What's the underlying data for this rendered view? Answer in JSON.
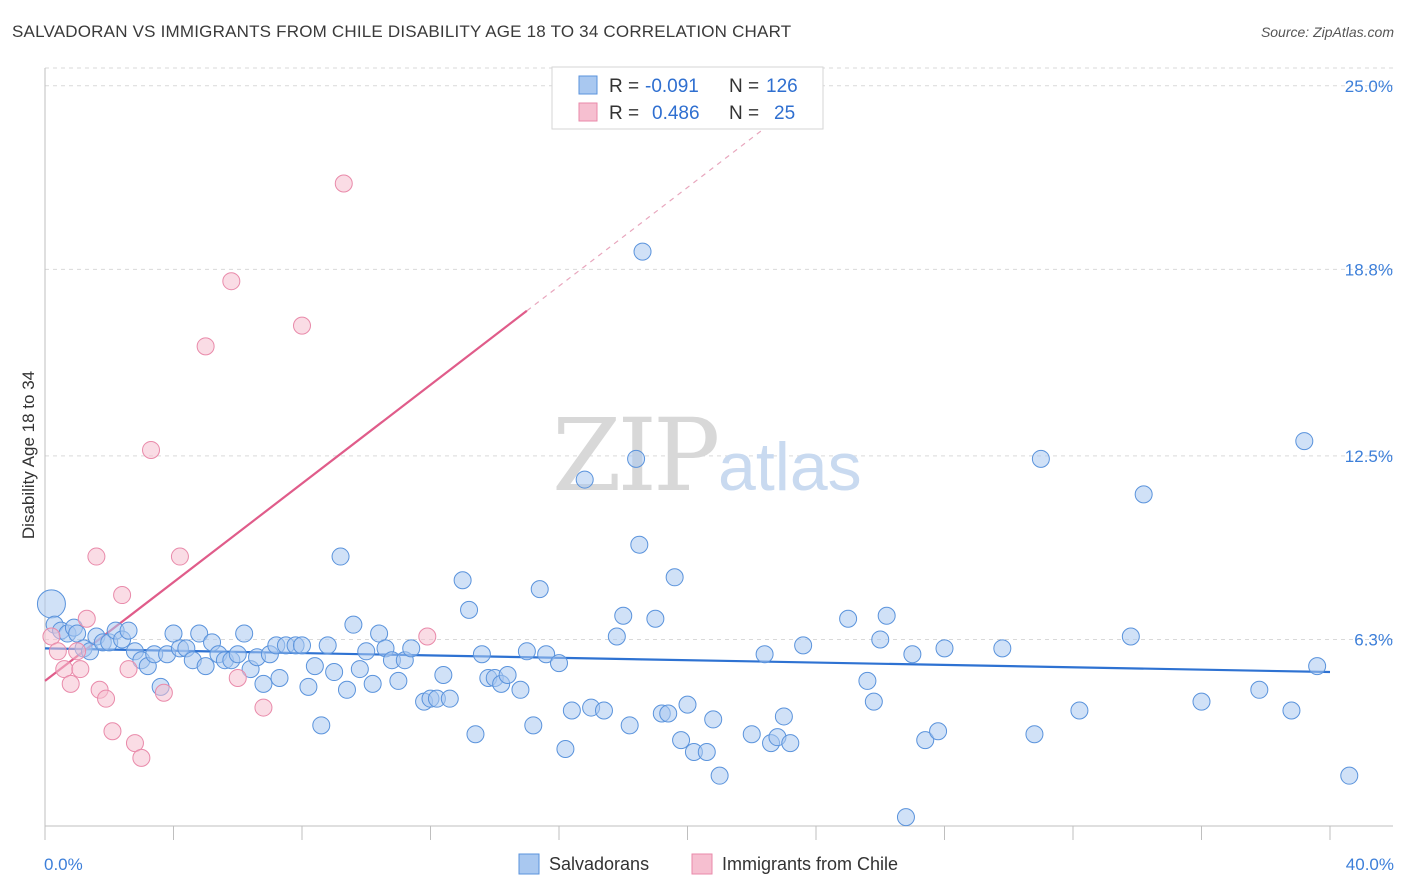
{
  "title": "SALVADORAN VS IMMIGRANTS FROM CHILE DISABILITY AGE 18 TO 34 CORRELATION CHART",
  "source": "Source: ZipAtlas.com",
  "watermark": {
    "zip": "ZIP",
    "atlas": "atlas"
  },
  "colors": {
    "blue_fill": "#a9c8f0",
    "blue_stroke": "#5a93dc",
    "blue_line": "#2e72d2",
    "pink_fill": "#f6bfd0",
    "pink_stroke": "#e98aaa",
    "pink_line": "#e05c8a",
    "tick_text": "#3d7fd9",
    "grid": "#d9d9d9"
  },
  "legend": {
    "rows": [
      {
        "r_label": "R =",
        "r_value": "-0.091",
        "n_label": "N =",
        "n_value": "126"
      },
      {
        "r_label": "R =",
        "r_value": "0.486",
        "n_label": "N =",
        "n_value": "25"
      }
    ]
  },
  "chart_data": {
    "type": "scatter",
    "title": "SALVADORAN VS IMMIGRANTS FROM CHILE DISABILITY AGE 18 TO 34 CORRELATION CHART",
    "xlabel": "",
    "ylabel": "Disability Age 18 to 34",
    "xlim": [
      0,
      40
    ],
    "ylim": [
      0,
      25.6
    ],
    "x_tick_labels": [
      "0.0%",
      "40.0%"
    ],
    "y_ticks": [
      6.3,
      12.5,
      18.8,
      25.0
    ],
    "y_tick_labels": [
      "6.3%",
      "12.5%",
      "18.8%",
      "25.0%"
    ],
    "grid": true,
    "legend_position": "bottom",
    "series": [
      {
        "name": "Salvadorans",
        "color": "#a9c8f0",
        "trend": {
          "x": [
            0,
            40
          ],
          "y": [
            6.0,
            5.2
          ]
        },
        "points": [
          [
            0.2,
            7.5
          ],
          [
            0.3,
            6.8
          ],
          [
            0.5,
            6.6
          ],
          [
            0.7,
            6.5
          ],
          [
            0.9,
            6.7
          ],
          [
            1.0,
            6.5
          ],
          [
            1.2,
            6.0
          ],
          [
            1.4,
            5.9
          ],
          [
            1.6,
            6.4
          ],
          [
            1.8,
            6.2
          ],
          [
            2.0,
            6.2
          ],
          [
            2.2,
            6.6
          ],
          [
            2.4,
            6.3
          ],
          [
            2.6,
            6.6
          ],
          [
            2.8,
            5.9
          ],
          [
            3.0,
            5.6
          ],
          [
            3.2,
            5.4
          ],
          [
            3.4,
            5.8
          ],
          [
            3.6,
            4.7
          ],
          [
            3.8,
            5.8
          ],
          [
            4.0,
            6.5
          ],
          [
            4.2,
            6.0
          ],
          [
            4.4,
            6.0
          ],
          [
            4.6,
            5.6
          ],
          [
            4.8,
            6.5
          ],
          [
            5.0,
            5.4
          ],
          [
            5.2,
            6.2
          ],
          [
            5.4,
            5.8
          ],
          [
            5.6,
            5.6
          ],
          [
            5.8,
            5.6
          ],
          [
            6.0,
            5.8
          ],
          [
            6.2,
            6.5
          ],
          [
            6.4,
            5.3
          ],
          [
            6.6,
            5.7
          ],
          [
            6.8,
            4.8
          ],
          [
            7.0,
            5.8
          ],
          [
            7.2,
            6.1
          ],
          [
            7.3,
            5.0
          ],
          [
            7.5,
            6.1
          ],
          [
            7.8,
            6.1
          ],
          [
            8.0,
            6.1
          ],
          [
            8.2,
            4.7
          ],
          [
            8.4,
            5.4
          ],
          [
            8.6,
            3.4
          ],
          [
            8.8,
            6.1
          ],
          [
            9.0,
            5.2
          ],
          [
            9.2,
            9.1
          ],
          [
            9.4,
            4.6
          ],
          [
            9.6,
            6.8
          ],
          [
            9.8,
            5.3
          ],
          [
            10.0,
            5.9
          ],
          [
            10.2,
            4.8
          ],
          [
            10.4,
            6.5
          ],
          [
            10.6,
            6.0
          ],
          [
            10.8,
            5.6
          ],
          [
            11.0,
            4.9
          ],
          [
            11.2,
            5.6
          ],
          [
            11.4,
            6.0
          ],
          [
            11.8,
            4.2
          ],
          [
            12.0,
            4.3
          ],
          [
            12.2,
            4.3
          ],
          [
            12.4,
            5.1
          ],
          [
            12.6,
            4.3
          ],
          [
            13.0,
            8.3
          ],
          [
            13.2,
            7.3
          ],
          [
            13.4,
            3.1
          ],
          [
            13.6,
            5.8
          ],
          [
            13.8,
            5.0
          ],
          [
            14.0,
            5.0
          ],
          [
            14.2,
            4.8
          ],
          [
            14.4,
            5.1
          ],
          [
            14.8,
            4.6
          ],
          [
            15.0,
            5.9
          ],
          [
            15.2,
            3.4
          ],
          [
            15.4,
            8.0
          ],
          [
            15.6,
            5.8
          ],
          [
            16.0,
            5.5
          ],
          [
            16.2,
            2.6
          ],
          [
            16.4,
            3.9
          ],
          [
            16.8,
            11.7
          ],
          [
            17.0,
            4.0
          ],
          [
            17.4,
            3.9
          ],
          [
            17.8,
            6.4
          ],
          [
            18.0,
            7.1
          ],
          [
            18.2,
            3.4
          ],
          [
            18.4,
            12.4
          ],
          [
            18.5,
            9.5
          ],
          [
            18.6,
            19.4
          ],
          [
            19.0,
            7.0
          ],
          [
            19.2,
            3.8
          ],
          [
            19.4,
            3.8
          ],
          [
            19.6,
            8.4
          ],
          [
            19.8,
            2.9
          ],
          [
            20.0,
            4.1
          ],
          [
            20.2,
            2.5
          ],
          [
            20.6,
            2.5
          ],
          [
            20.8,
            3.6
          ],
          [
            21.0,
            1.7
          ],
          [
            22.0,
            3.1
          ],
          [
            22.4,
            5.8
          ],
          [
            22.6,
            2.8
          ],
          [
            22.8,
            3.0
          ],
          [
            23.0,
            3.7
          ],
          [
            23.2,
            2.8
          ],
          [
            23.6,
            6.1
          ],
          [
            25.0,
            7.0
          ],
          [
            25.6,
            4.9
          ],
          [
            25.8,
            4.2
          ],
          [
            26.0,
            6.3
          ],
          [
            26.2,
            7.1
          ],
          [
            26.8,
            0.3
          ],
          [
            27.0,
            5.8
          ],
          [
            27.4,
            2.9
          ],
          [
            27.8,
            3.2
          ],
          [
            28.0,
            6.0
          ],
          [
            29.8,
            6.0
          ],
          [
            30.8,
            3.1
          ],
          [
            31.0,
            12.4
          ],
          [
            32.2,
            3.9
          ],
          [
            33.8,
            6.4
          ],
          [
            34.2,
            11.2
          ],
          [
            36.0,
            4.2
          ],
          [
            37.8,
            4.6
          ],
          [
            38.8,
            3.9
          ],
          [
            39.2,
            13.0
          ],
          [
            39.6,
            5.4
          ],
          [
            40.6,
            1.7
          ]
        ]
      },
      {
        "name": "Immigrants from Chile",
        "color": "#f6bfd0",
        "trend": {
          "x": [
            0,
            15
          ],
          "y": [
            4.9,
            17.4
          ],
          "dashed_to": {
            "x": 24,
            "y": 24.9
          }
        },
        "points": [
          [
            0.2,
            6.4
          ],
          [
            0.4,
            5.9
          ],
          [
            0.6,
            5.3
          ],
          [
            0.8,
            4.8
          ],
          [
            1.0,
            5.9
          ],
          [
            1.1,
            5.3
          ],
          [
            1.3,
            7.0
          ],
          [
            1.6,
            9.1
          ],
          [
            1.7,
            4.6
          ],
          [
            1.9,
            4.3
          ],
          [
            2.1,
            3.2
          ],
          [
            2.4,
            7.8
          ],
          [
            2.6,
            5.3
          ],
          [
            2.8,
            2.8
          ],
          [
            3.0,
            2.3
          ],
          [
            3.3,
            12.7
          ],
          [
            3.7,
            4.5
          ],
          [
            4.2,
            9.1
          ],
          [
            5.0,
            16.2
          ],
          [
            5.8,
            18.4
          ],
          [
            6.0,
            5.0
          ],
          [
            6.8,
            4.0
          ],
          [
            8.0,
            16.9
          ],
          [
            9.3,
            21.7
          ],
          [
            11.9,
            6.4
          ]
        ]
      }
    ]
  }
}
